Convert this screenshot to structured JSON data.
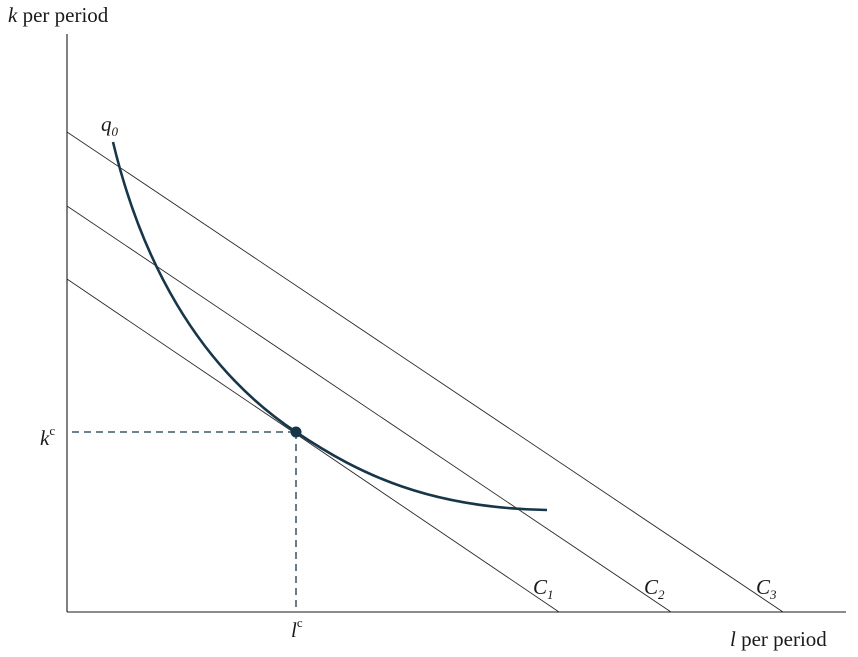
{
  "y_axis": {
    "variable": "k",
    "suffix": " per period"
  },
  "x_axis": {
    "variable": "l",
    "suffix": " per period"
  },
  "isoquant": {
    "symbol": "q",
    "subscript": "0"
  },
  "cost_lines": [
    {
      "symbol": "C",
      "subscript": "1"
    },
    {
      "symbol": "C",
      "subscript": "2"
    },
    {
      "symbol": "C",
      "subscript": "3"
    }
  ],
  "tangency": {
    "k_symbol": "k",
    "k_superscript": "c",
    "l_symbol": "l",
    "l_superscript": "c"
  },
  "colors": {
    "curve": "#17364a",
    "lines": "#2a2a2a",
    "axes": "#1a1a1a"
  }
}
